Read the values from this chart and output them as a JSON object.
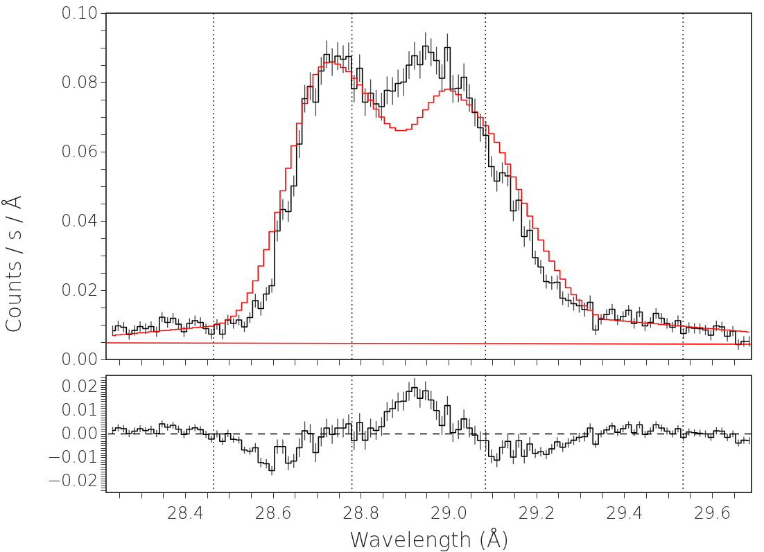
{
  "chart_data": [
    {
      "type": "step",
      "ylabel": "Counts / s / Å",
      "tick_labels": "y",
      "xlim": [
        28.22,
        29.69
      ],
      "xticks": [
        {
          "value": 28.25,
          "label": null
        },
        {
          "value": 28.3,
          "label": null
        },
        {
          "value": 28.35,
          "label": null
        },
        {
          "value": 28.4,
          "label": null
        },
        {
          "value": 28.45,
          "label": null
        },
        {
          "value": 28.5,
          "label": null
        },
        {
          "value": 28.55,
          "label": null
        },
        {
          "value": 28.6,
          "label": null
        },
        {
          "value": 28.65,
          "label": null
        },
        {
          "value": 28.7,
          "label": null
        },
        {
          "value": 28.75,
          "label": null
        },
        {
          "value": 28.8,
          "label": null
        },
        {
          "value": 28.85,
          "label": null
        },
        {
          "value": 28.9,
          "label": null
        },
        {
          "value": 28.95,
          "label": null
        },
        {
          "value": 29,
          "label": null
        },
        {
          "value": 29.05,
          "label": null
        },
        {
          "value": 29.1,
          "label": null
        },
        {
          "value": 29.15,
          "label": null
        },
        {
          "value": 29.2,
          "label": null
        },
        {
          "value": 29.25,
          "label": null
        },
        {
          "value": 29.3,
          "label": null
        },
        {
          "value": 29.35,
          "label": null
        },
        {
          "value": 29.4,
          "label": null
        },
        {
          "value": 29.45,
          "label": null
        },
        {
          "value": 29.5,
          "label": null
        },
        {
          "value": 29.55,
          "label": null
        },
        {
          "value": 29.6,
          "label": null
        },
        {
          "value": 29.65,
          "label": null
        }
      ],
      "ylim": [
        0,
        0.1
      ],
      "yticks": [
        {
          "value": 0,
          "label": "0.00"
        },
        {
          "value": 0.005,
          "label": null
        },
        {
          "value": 0.01,
          "label": null
        },
        {
          "value": 0.015,
          "label": null
        },
        {
          "value": 0.02,
          "label": "0.02"
        },
        {
          "value": 0.025,
          "label": null
        },
        {
          "value": 0.03,
          "label": null
        },
        {
          "value": 0.035,
          "label": null
        },
        {
          "value": 0.04,
          "label": "0.04"
        },
        {
          "value": 0.045,
          "label": null
        },
        {
          "value": 0.05,
          "label": null
        },
        {
          "value": 0.055,
          "label": null
        },
        {
          "value": 0.06,
          "label": "0.06"
        },
        {
          "value": 0.065,
          "label": null
        },
        {
          "value": 0.07,
          "label": null
        },
        {
          "value": 0.075,
          "label": null
        },
        {
          "value": 0.08,
          "label": "0.08"
        },
        {
          "value": 0.085,
          "label": null
        },
        {
          "value": 0.09,
          "label": null
        },
        {
          "value": 0.095,
          "label": null
        },
        {
          "value": 0.1,
          "label": "0.10"
        }
      ],
      "x": [
        28.235,
        28.2475,
        28.26,
        28.2725,
        28.285,
        28.2975,
        28.31,
        28.3225,
        28.335,
        28.3475,
        28.36,
        28.3725,
        28.385,
        28.3975,
        28.41,
        28.4225,
        28.435,
        28.4475,
        28.46,
        28.4725,
        28.485,
        28.4975,
        28.51,
        28.5225,
        28.535,
        28.5475,
        28.56,
        28.5725,
        28.585,
        28.5975,
        28.61,
        28.6225,
        28.635,
        28.6475,
        28.66,
        28.6725,
        28.685,
        28.6975,
        28.71,
        28.7225,
        28.735,
        28.7475,
        28.76,
        28.7725,
        28.785,
        28.7975,
        28.81,
        28.8225,
        28.835,
        28.8475,
        28.86,
        28.8725,
        28.885,
        28.8975,
        28.91,
        28.9225,
        28.935,
        28.9475,
        28.96,
        28.9725,
        28.985,
        28.9975,
        29.01,
        29.0225,
        29.035,
        29.0475,
        29.06,
        29.0725,
        29.085,
        29.0975,
        29.11,
        29.1225,
        29.135,
        29.1475,
        29.16,
        29.1725,
        29.185,
        29.1975,
        29.21,
        29.2225,
        29.235,
        29.2475,
        29.26,
        29.2725,
        29.285,
        29.2975,
        29.31,
        29.3225,
        29.335,
        29.3475,
        29.36,
        29.3725,
        29.385,
        29.3975,
        29.41,
        29.4225,
        29.435,
        29.4475,
        29.46,
        29.4725,
        29.485,
        29.4975,
        29.51,
        29.5225,
        29.535,
        29.5475,
        29.56,
        29.5725,
        29.585,
        29.5975,
        29.61,
        29.6225,
        29.635,
        29.6475,
        29.66,
        29.6725,
        29.685
      ],
      "series": [
        {
          "color": "#000000",
          "values": [
            0.0083,
            0.0097,
            0.0093,
            0.0072,
            0.0084,
            0.0095,
            0.0089,
            0.0095,
            0.008,
            0.0122,
            0.0107,
            0.0119,
            0.0102,
            0.008,
            0.0104,
            0.0112,
            0.0107,
            0.0089,
            0.0073,
            0.0101,
            0.0073,
            0.0114,
            0.0104,
            0.0114,
            0.0094,
            0.0121,
            0.017,
            0.0147,
            0.0189,
            0.0213,
            0.0371,
            0.0433,
            0.0427,
            0.0501,
            0.0622,
            0.0753,
            0.0789,
            0.0743,
            0.0833,
            0.0881,
            0.0859,
            0.0876,
            0.0867,
            0.0875,
            0.0782,
            0.0841,
            0.0743,
            0.0769,
            0.0738,
            0.073,
            0.0777,
            0.0775,
            0.0797,
            0.0801,
            0.085,
            0.0877,
            0.0851,
            0.0905,
            0.0887,
            0.0863,
            0.0812,
            0.0901,
            0.0781,
            0.0783,
            0.0815,
            0.0755,
            0.0713,
            0.0669,
            0.0647,
            0.0557,
            0.0515,
            0.0539,
            0.053,
            0.0429,
            0.046,
            0.0355,
            0.0373,
            0.0294,
            0.0267,
            0.0225,
            0.0221,
            0.0223,
            0.0177,
            0.0171,
            0.0161,
            0.0155,
            0.0144,
            0.0165,
            0.0085,
            0.0116,
            0.013,
            0.0145,
            0.0114,
            0.0124,
            0.0142,
            0.0104,
            0.0137,
            0.0097,
            0.0107,
            0.0133,
            0.0119,
            0.0104,
            0.0093,
            0.0112,
            0.0075,
            0.0092,
            0.009,
            0.0089,
            0.0085,
            0.007,
            0.0097,
            0.0094,
            0.0067,
            0.0082,
            0.0043,
            0.0052,
            0.0052
          ],
          "errors": [
            0.0015,
            0.0015,
            0.0015,
            0.0015,
            0.0015,
            0.0015,
            0.0015,
            0.0015,
            0.0015,
            0.0015,
            0.0015,
            0.0015,
            0.0015,
            0.0015,
            0.0015,
            0.0015,
            0.0015,
            0.0015,
            0.0015,
            0.0015,
            0.0015,
            0.0015,
            0.0015,
            0.0015,
            0.0015,
            0.0015,
            0.002,
            0.002,
            0.002,
            0.002,
            0.003,
            0.003,
            0.003,
            0.003,
            0.004,
            0.004,
            0.004,
            0.004,
            0.004,
            0.004,
            0.004,
            0.004,
            0.004,
            0.004,
            0.004,
            0.004,
            0.004,
            0.004,
            0.004,
            0.004,
            0.004,
            0.004,
            0.004,
            0.004,
            0.004,
            0.004,
            0.004,
            0.004,
            0.004,
            0.004,
            0.004,
            0.004,
            0.004,
            0.004,
            0.004,
            0.004,
            0.004,
            0.004,
            0.004,
            0.003,
            0.003,
            0.003,
            0.003,
            0.003,
            0.003,
            0.003,
            0.003,
            0.002,
            0.002,
            0.002,
            0.002,
            0.002,
            0.002,
            0.002,
            0.002,
            0.002,
            0.002,
            0.002,
            0.0015,
            0.0015,
            0.0015,
            0.0015,
            0.0015,
            0.0015,
            0.0015,
            0.0015,
            0.0015,
            0.0015,
            0.0015,
            0.0015,
            0.0015,
            0.0015,
            0.0015,
            0.0015,
            0.0015,
            0.0015,
            0.0015,
            0.0015,
            0.0015,
            0.0015,
            0.0015,
            0.0015,
            0.0015,
            0.0015,
            0.0015,
            0.0015,
            0.0015
          ]
        },
        {
          "color": "#ff0000",
          "values": [
            0.0069,
            0.0071,
            0.0072,
            0.0074,
            0.0075,
            0.0077,
            0.0078,
            0.008,
            0.0081,
            0.0083,
            0.0084,
            0.0086,
            0.0087,
            0.0089,
            0.009,
            0.0092,
            0.0093,
            0.0095,
            0.0096,
            0.0102,
            0.0105,
            0.0115,
            0.0125,
            0.0142,
            0.0164,
            0.0192,
            0.0227,
            0.027,
            0.0317,
            0.0369,
            0.0425,
            0.0487,
            0.0552,
            0.0617,
            0.0682,
            0.0739,
            0.0787,
            0.0823,
            0.0845,
            0.0857,
            0.0859,
            0.0853,
            0.0843,
            0.0831,
            0.0812,
            0.0793,
            0.0769,
            0.0749,
            0.0723,
            0.07,
            0.0681,
            0.0669,
            0.0661,
            0.0661,
            0.0665,
            0.0679,
            0.0699,
            0.0721,
            0.0742,
            0.0761,
            0.0775,
            0.078,
            0.0775,
            0.0765,
            0.0749,
            0.0735,
            0.0715,
            0.0699,
            0.0675,
            0.0652,
            0.0627,
            0.0597,
            0.0564,
            0.0527,
            0.0491,
            0.0451,
            0.0414,
            0.0379,
            0.0345,
            0.0313,
            0.0284,
            0.0257,
            0.0232,
            0.0207,
            0.0187,
            0.0171,
            0.0155,
            0.0142,
            0.0129,
            0.0119,
            0.0115,
            0.0114,
            0.0112,
            0.0111,
            0.011,
            0.0108,
            0.0107,
            0.0105,
            0.0104,
            0.0103,
            0.0101,
            0.01,
            0.0099,
            0.0097,
            0.0096,
            0.0094,
            0.0093,
            0.0092,
            0.009,
            0.0089,
            0.0088,
            0.0086,
            0.0085,
            0.0083,
            0.0082,
            0.0081,
            0.0079
          ]
        },
        {
          "type": "line",
          "color": "#ff0000",
          "x": [
            28.22,
            29.69
          ],
          "values": [
            0.0048,
            0.0044
          ]
        }
      ],
      "ref_lines": [
        {
          "axis": "x",
          "value": 28.465,
          "line_style": "dotted"
        },
        {
          "axis": "x",
          "value": 28.78,
          "line_style": "dotted"
        },
        {
          "axis": "x",
          "value": 29.084,
          "line_style": "dotted"
        },
        {
          "axis": "x",
          "value": 29.534,
          "line_style": "dotted"
        }
      ]
    },
    {
      "type": "step",
      "xlabel": "Wavelength (Å)",
      "xlim": [
        28.22,
        29.69
      ],
      "xticks": [
        {
          "value": 28.25,
          "label": null
        },
        {
          "value": 28.3,
          "label": null
        },
        {
          "value": 28.35,
          "label": null
        },
        28.4,
        {
          "value": 28.45,
          "label": null
        },
        {
          "value": 28.5,
          "label": null
        },
        {
          "value": 28.55,
          "label": null
        },
        28.6,
        {
          "value": 28.65,
          "label": null
        },
        {
          "value": 28.7,
          "label": null
        },
        {
          "value": 28.75,
          "label": null
        },
        28.8,
        {
          "value": 28.85,
          "label": null
        },
        {
          "value": 28.9,
          "label": null
        },
        {
          "value": 28.95,
          "label": null
        },
        {
          "value": 29,
          "label": "29.0"
        },
        {
          "value": 29.05,
          "label": null
        },
        {
          "value": 29.1,
          "label": null
        },
        {
          "value": 29.15,
          "label": null
        },
        29.2,
        {
          "value": 29.25,
          "label": null
        },
        {
          "value": 29.3,
          "label": null
        },
        {
          "value": 29.35,
          "label": null
        },
        29.4,
        {
          "value": 29.45,
          "label": null
        },
        {
          "value": 29.5,
          "label": null
        },
        {
          "value": 29.55,
          "label": null
        },
        29.6,
        {
          "value": 29.65,
          "label": null
        }
      ],
      "ylim": [
        -0.025,
        0.025
      ],
      "yticks": [
        {
          "value": -0.02,
          "label": "−0.02"
        },
        {
          "value": -0.01,
          "label": "−0.01"
        },
        {
          "value": 0,
          "label": "0.00"
        },
        {
          "value": 0.01,
          "label": "0.01"
        },
        {
          "value": 0.02,
          "label": "0.02"
        },
        {
          "value": -0.024,
          "label": null
        },
        {
          "value": -0.023,
          "label": null
        },
        {
          "value": -0.022,
          "label": null
        },
        {
          "value": -0.021,
          "label": null
        },
        {
          "value": -0.019,
          "label": null
        },
        {
          "value": -0.018,
          "label": null
        },
        {
          "value": -0.017,
          "label": null
        },
        {
          "value": -0.016,
          "label": null
        },
        {
          "value": -0.015,
          "label": null
        },
        {
          "value": -0.014,
          "label": null
        },
        {
          "value": -0.013,
          "label": null
        },
        {
          "value": -0.012,
          "label": null
        },
        {
          "value": -0.011,
          "label": null
        },
        {
          "value": -0.009,
          "label": null
        },
        {
          "value": -0.008,
          "label": null
        },
        {
          "value": -0.007,
          "label": null
        },
        {
          "value": -0.006,
          "label": null
        },
        {
          "value": -0.005,
          "label": null
        },
        {
          "value": -0.004,
          "label": null
        },
        {
          "value": -0.003,
          "label": null
        },
        {
          "value": -0.002,
          "label": null
        },
        {
          "value": -0.001,
          "label": null
        },
        {
          "value": 0.001,
          "label": null
        },
        {
          "value": 0.002,
          "label": null
        },
        {
          "value": 0.003,
          "label": null
        },
        {
          "value": 0.004,
          "label": null
        },
        {
          "value": 0.005,
          "label": null
        },
        {
          "value": 0.006,
          "label": null
        },
        {
          "value": 0.007,
          "label": null
        },
        {
          "value": 0.008,
          "label": null
        },
        {
          "value": 0.009,
          "label": null
        },
        {
          "value": 0.011,
          "label": null
        },
        {
          "value": 0.012,
          "label": null
        },
        {
          "value": 0.013,
          "label": null
        },
        {
          "value": 0.014,
          "label": null
        },
        {
          "value": 0.015,
          "label": null
        },
        {
          "value": 0.016,
          "label": null
        },
        {
          "value": 0.017,
          "label": null
        },
        {
          "value": 0.018,
          "label": null
        },
        {
          "value": 0.019,
          "label": null
        },
        {
          "value": 0.021,
          "label": null
        },
        {
          "value": 0.022,
          "label": null
        },
        {
          "value": 0.023,
          "label": null
        },
        {
          "value": 0.024,
          "label": null
        }
      ],
      "x": [
        28.235,
        28.2475,
        28.26,
        28.2725,
        28.285,
        28.2975,
        28.31,
        28.3225,
        28.335,
        28.3475,
        28.36,
        28.3725,
        28.385,
        28.3975,
        28.41,
        28.4225,
        28.435,
        28.4475,
        28.46,
        28.4725,
        28.485,
        28.4975,
        28.51,
        28.5225,
        28.535,
        28.5475,
        28.56,
        28.5725,
        28.585,
        28.5975,
        28.61,
        28.6225,
        28.635,
        28.6475,
        28.66,
        28.6725,
        28.685,
        28.6975,
        28.71,
        28.7225,
        28.735,
        28.7475,
        28.76,
        28.7725,
        28.785,
        28.7975,
        28.81,
        28.8225,
        28.835,
        28.8475,
        28.86,
        28.8725,
        28.885,
        28.8975,
        28.91,
        28.9225,
        28.935,
        28.9475,
        28.96,
        28.9725,
        28.985,
        28.9975,
        29.01,
        29.0225,
        29.035,
        29.0475,
        29.06,
        29.0725,
        29.085,
        29.0975,
        29.11,
        29.1225,
        29.135,
        29.1475,
        29.16,
        29.1725,
        29.185,
        29.1975,
        29.21,
        29.2225,
        29.235,
        29.2475,
        29.26,
        29.2725,
        29.285,
        29.2975,
        29.31,
        29.3225,
        29.335,
        29.3475,
        29.36,
        29.3725,
        29.385,
        29.3975,
        29.41,
        29.4225,
        29.435,
        29.4475,
        29.46,
        29.4725,
        29.485,
        29.4975,
        29.51,
        29.5225,
        29.535,
        29.5475,
        29.56,
        29.5725,
        29.585,
        29.5975,
        29.61,
        29.6225,
        29.635,
        29.6475,
        29.66,
        29.6725,
        29.685
      ],
      "series": [
        {
          "color": "#000000",
          "values": [
            0.0015,
            0.0026,
            0.0022,
            0.0002,
            0.0012,
            0.0022,
            0.0014,
            0.002,
            0.0002,
            0.0043,
            0.0029,
            0.0037,
            0.002,
            -0.0002,
            0.002,
            0.0026,
            0.0018,
            -0.0002,
            -0.0022,
            0,
            -0.0032,
            0.0002,
            -0.0023,
            -0.0026,
            -0.0069,
            -0.0074,
            -0.0059,
            -0.0123,
            -0.0127,
            -0.0157,
            -0.0054,
            -0.0054,
            -0.0125,
            -0.0116,
            -0.0059,
            0.0013,
            0.0002,
            -0.008,
            -0.0013,
            0.0025,
            -0.0002,
            0.0025,
            0.0025,
            0.0043,
            -0.0029,
            0.0049,
            -0.0027,
            0.0025,
            0.0015,
            0.0031,
            0.0095,
            0.0108,
            0.0137,
            0.014,
            0.0181,
            0.0198,
            0.0152,
            0.0184,
            0.0145,
            0.01,
            0.0036,
            0.0121,
            0.0005,
            0.0018,
            0.0064,
            0.0025,
            -0.0005,
            -0.0029,
            -0.0029,
            -0.0096,
            -0.0112,
            -0.0057,
            -0.0032,
            -0.0099,
            -0.0029,
            -0.0096,
            -0.0043,
            -0.0083,
            -0.0076,
            -0.0088,
            -0.0064,
            -0.0034,
            -0.0057,
            -0.0039,
            -0.0027,
            -0.0015,
            -0.0012,
            0.0025,
            -0.0044,
            0,
            0.0017,
            0.0034,
            0.0007,
            0.0022,
            0.0039,
            0.0005,
            0.0039,
            -0.0002,
            0.0012,
            0.0039,
            0.0025,
            0.0012,
            0,
            0.0022,
            -0.0015,
            0.0008,
            0.0005,
            0.0003,
            0,
            -0.0015,
            0.0013,
            0.0012,
            -0.0015,
            0,
            -0.0039,
            -0.0027,
            -0.0029
          ],
          "errors": [
            0.0015,
            0.0015,
            0.0015,
            0.0015,
            0.0015,
            0.0015,
            0.0015,
            0.0015,
            0.0015,
            0.0015,
            0.0015,
            0.0015,
            0.0015,
            0.0015,
            0.0015,
            0.0015,
            0.0015,
            0.0015,
            0.0015,
            0.0015,
            0.0015,
            0.0015,
            0.0015,
            0.0015,
            0.0015,
            0.0015,
            0.002,
            0.002,
            0.002,
            0.002,
            0.003,
            0.003,
            0.003,
            0.003,
            0.004,
            0.004,
            0.004,
            0.004,
            0.004,
            0.004,
            0.004,
            0.004,
            0.004,
            0.004,
            0.004,
            0.004,
            0.004,
            0.004,
            0.004,
            0.004,
            0.004,
            0.004,
            0.004,
            0.004,
            0.004,
            0.004,
            0.004,
            0.004,
            0.004,
            0.004,
            0.004,
            0.004,
            0.004,
            0.004,
            0.004,
            0.004,
            0.004,
            0.004,
            0.004,
            0.003,
            0.003,
            0.003,
            0.003,
            0.003,
            0.003,
            0.003,
            0.003,
            0.002,
            0.002,
            0.002,
            0.002,
            0.002,
            0.002,
            0.002,
            0.002,
            0.002,
            0.002,
            0.002,
            0.0015,
            0.0015,
            0.0015,
            0.0015,
            0.0015,
            0.0015,
            0.0015,
            0.0015,
            0.0015,
            0.0015,
            0.0015,
            0.0015,
            0.0015,
            0.0015,
            0.0015,
            0.0015,
            0.0015,
            0.0015,
            0.0015,
            0.0015,
            0.0015,
            0.0015,
            0.0015,
            0.0015,
            0.0015,
            0.0015,
            0.0015,
            0.0015,
            0.0015
          ]
        }
      ],
      "ref_lines": [
        {
          "axis": "x",
          "value": 28.465,
          "line_style": "dotted"
        },
        {
          "axis": "x",
          "value": 28.78,
          "line_style": "dotted"
        },
        {
          "axis": "x",
          "value": 29.084,
          "line_style": "dotted"
        },
        {
          "axis": "x",
          "value": 29.534,
          "line_style": "dotted"
        },
        {
          "axis": "y",
          "value": 0,
          "line_style": "dashed"
        }
      ]
    }
  ]
}
